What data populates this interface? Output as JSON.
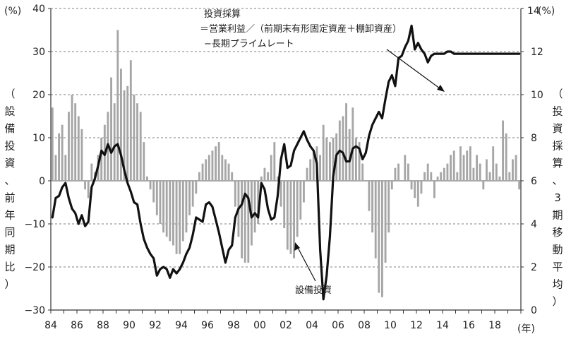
{
  "chart_data": {
    "type": "bar+line",
    "title": "",
    "left_axis": {
      "unit": "(%)",
      "label": "（設備投資、前年同期比）",
      "range": [
        -30,
        40
      ],
      "ticks": [
        "−30",
        "−20",
        "−10",
        "0",
        "10",
        "20",
        "30",
        "40"
      ]
    },
    "right_axis": {
      "unit": "(%)",
      "label": "（投資採算、3期移動平均）",
      "range": [
        0,
        14
      ],
      "ticks": [
        "0",
        "2",
        "4",
        "6",
        "8",
        "10",
        "12",
        "14"
      ]
    },
    "x_axis": {
      "unit": "(年)",
      "range": [
        1984,
        2020
      ],
      "tick_labels": [
        "84",
        "86",
        "88",
        "90",
        "92",
        "94",
        "96",
        "98",
        "00",
        "02",
        "04",
        "06",
        "08",
        "10",
        "12",
        "14",
        "16",
        "18"
      ]
    },
    "grid": "horizontal dashed",
    "annotations": {
      "line_title": "投資採算",
      "line_formula_1": "＝営業利益／（前期末有形固定資産＋棚卸資産）",
      "line_formula_2": "−長期プライムレート",
      "bar_label": "設備投資"
    },
    "series": [
      {
        "name": "設備投資",
        "type": "bar",
        "axis": "left",
        "color": "#a6a6a6",
        "x": [
          1984.0,
          1984.25,
          1984.5,
          1984.75,
          1985.0,
          1985.25,
          1985.5,
          1985.75,
          1986.0,
          1986.25,
          1986.5,
          1986.75,
          1987.0,
          1987.25,
          1987.5,
          1987.75,
          1988.0,
          1988.25,
          1988.5,
          1988.75,
          1989.0,
          1989.25,
          1989.5,
          1989.75,
          1990.0,
          1990.25,
          1990.5,
          1990.75,
          1991.0,
          1991.25,
          1991.5,
          1991.75,
          1992.0,
          1992.25,
          1992.5,
          1992.75,
          1993.0,
          1993.25,
          1993.5,
          1993.75,
          1994.0,
          1994.25,
          1994.5,
          1994.75,
          1995.0,
          1995.25,
          1995.5,
          1995.75,
          1996.0,
          1996.25,
          1996.5,
          1996.75,
          1997.0,
          1997.25,
          1997.5,
          1997.75,
          1998.0,
          1998.25,
          1998.5,
          1998.75,
          1999.0,
          1999.25,
          1999.5,
          1999.75,
          2000.0,
          2000.25,
          2000.5,
          2000.75,
          2001.0,
          2001.25,
          2001.5,
          2001.75,
          2002.0,
          2002.25,
          2002.5,
          2002.75,
          2003.0,
          2003.25,
          2003.5,
          2003.75,
          2004.0,
          2004.25,
          2004.5,
          2004.75,
          2005.0,
          2005.25,
          2005.5,
          2005.75,
          2006.0,
          2006.25,
          2006.5,
          2006.75,
          2007.0,
          2007.25,
          2007.5,
          2007.75,
          2008.0,
          2008.25,
          2008.5,
          2008.75,
          2009.0,
          2009.25,
          2009.5,
          2009.75,
          2010.0,
          2010.25,
          2010.5,
          2010.75,
          2011.0,
          2011.25,
          2011.5,
          2011.75,
          2012.0,
          2012.25,
          2012.5,
          2012.75,
          2013.0,
          2013.25,
          2013.5,
          2013.75,
          2014.0,
          2014.25,
          2014.5,
          2014.75,
          2015.0,
          2015.25,
          2015.5,
          2015.75,
          2016.0,
          2016.25,
          2016.5,
          2016.75,
          2017.0,
          2017.25,
          2017.5,
          2017.75,
          2018.0,
          2018.25,
          2018.5,
          2018.75,
          2019.0,
          2019.25,
          2019.5,
          2019.75
        ],
        "values": [
          17,
          6,
          11,
          13,
          6,
          16,
          20,
          18,
          15,
          12,
          -2,
          -4,
          4,
          2,
          6,
          10,
          13,
          16,
          24,
          18,
          35,
          26,
          21,
          22,
          28,
          20,
          18,
          16,
          9,
          1,
          -2,
          -5,
          -8,
          -10,
          -12,
          -13,
          -14,
          -15,
          -17,
          -17,
          -14,
          -12,
          -8,
          -6,
          -3,
          2,
          4,
          5,
          6,
          7,
          8,
          9,
          6,
          5,
          4,
          2,
          -6,
          -13,
          -18,
          -19,
          -19,
          -15,
          -12,
          -10,
          1,
          3,
          2,
          6,
          9,
          1,
          -6,
          -11,
          -16,
          -17,
          -18,
          -13,
          -9,
          -5,
          3,
          5,
          7,
          8,
          6,
          13,
          10,
          9,
          10,
          11,
          14,
          15,
          18,
          12,
          17,
          10,
          9,
          4,
          0,
          -7,
          -12,
          -18,
          -26,
          -27,
          -19,
          -12,
          -2,
          3,
          4,
          0,
          6,
          4,
          -2,
          -4,
          -6,
          -3,
          2,
          4,
          2,
          -4,
          1,
          2,
          3,
          4,
          6,
          7,
          2,
          8,
          6,
          7,
          8,
          3,
          6,
          4,
          -2,
          5,
          2,
          8,
          4,
          1,
          14,
          11,
          2,
          5,
          6,
          -2
        ]
      },
      {
        "name": "投資採算",
        "type": "line",
        "axis": "right",
        "color": "#111111",
        "x": [
          1984.0,
          1984.25,
          1984.5,
          1984.75,
          1985.0,
          1985.25,
          1985.5,
          1985.75,
          1986.0,
          1986.25,
          1986.5,
          1986.75,
          1987.0,
          1987.25,
          1987.5,
          1987.75,
          1988.0,
          1988.25,
          1988.5,
          1988.75,
          1989.0,
          1989.25,
          1989.5,
          1989.75,
          1990.0,
          1990.25,
          1990.5,
          1990.75,
          1991.0,
          1991.25,
          1991.5,
          1991.75,
          1992.0,
          1992.25,
          1992.5,
          1992.75,
          1993.0,
          1993.25,
          1993.5,
          1993.75,
          1994.0,
          1994.25,
          1994.5,
          1994.75,
          1995.0,
          1995.25,
          1995.5,
          1995.75,
          1996.0,
          1996.25,
          1996.5,
          1996.75,
          1997.0,
          1997.25,
          1997.5,
          1997.75,
          1998.0,
          1998.25,
          1998.5,
          1998.75,
          1999.0,
          1999.25,
          1999.5,
          1999.75,
          2000.0,
          2000.25,
          2000.5,
          2000.75,
          2001.0,
          2001.25,
          2001.5,
          2001.75,
          2002.0,
          2002.25,
          2002.5,
          2002.75,
          2003.0,
          2003.25,
          2003.5,
          2003.75,
          2004.0,
          2004.25,
          2004.5,
          2004.75,
          2005.0,
          2005.25,
          2005.5,
          2005.75,
          2006.0,
          2006.25,
          2006.5,
          2006.75,
          2007.0,
          2007.25,
          2007.5,
          2007.75,
          2008.0,
          2008.25,
          2008.5,
          2008.75,
          2009.0,
          2009.25,
          2009.5,
          2009.75,
          2010.0,
          2010.25,
          2010.5,
          2010.75,
          2011.0,
          2011.25,
          2011.5,
          2011.75,
          2012.0,
          2012.25,
          2012.5,
          2012.75,
          2013.0,
          2013.25,
          2013.5,
          2013.75,
          2014.0,
          2014.25,
          2014.5,
          2014.75,
          2015.0,
          2015.25,
          2015.5,
          2015.75,
          2016.0,
          2016.25,
          2016.5,
          2016.75,
          2017.0,
          2017.25,
          2017.5,
          2017.75,
          2018.0,
          2018.25,
          2018.5,
          2018.75,
          2019.0,
          2019.25,
          2019.5,
          2019.75
        ],
        "values": [
          4.3,
          5.2,
          5.3,
          5.7,
          5.9,
          5.2,
          4.7,
          4.5,
          4.0,
          4.4,
          3.9,
          4.1,
          5.7,
          6.1,
          6.7,
          7.4,
          7.2,
          7.7,
          7.3,
          7.6,
          7.7,
          7.2,
          6.5,
          5.9,
          5.5,
          5.0,
          4.9,
          4.0,
          3.3,
          2.9,
          2.6,
          2.4,
          1.6,
          1.9,
          2.0,
          1.9,
          1.5,
          1.9,
          1.7,
          1.9,
          2.2,
          2.6,
          2.9,
          3.5,
          4.3,
          4.2,
          4.1,
          4.9,
          5.0,
          4.8,
          4.2,
          3.6,
          2.9,
          2.2,
          2.8,
          3.0,
          4.3,
          4.7,
          4.9,
          5.4,
          5.2,
          4.3,
          4.5,
          4.3,
          5.9,
          5.6,
          4.7,
          4.2,
          4.3,
          5.3,
          7.0,
          7.7,
          6.6,
          6.7,
          7.4,
          7.7,
          8.0,
          8.3,
          7.9,
          7.6,
          7.4,
          6.8,
          2.8,
          0.5,
          1.6,
          3.4,
          6.2,
          7.2,
          7.4,
          7.3,
          6.9,
          6.9,
          7.5,
          7.6,
          7.5,
          7.0,
          7.3,
          8.1,
          8.6,
          8.9,
          9.2,
          8.9,
          9.8,
          10.6,
          10.9,
          10.4,
          11.7,
          11.8,
          12.2,
          12.5,
          13.2,
          12.1,
          12.4,
          12.1,
          11.9,
          11.5,
          11.8,
          11.9,
          11.9,
          11.9,
          11.9,
          12.0,
          12.0,
          11.9,
          11.9,
          11.9,
          11.9,
          11.9,
          11.9,
          11.9,
          11.9,
          11.9,
          11.9,
          11.9,
          11.9,
          11.9,
          11.9,
          11.9,
          11.9,
          11.9,
          11.9,
          11.9,
          11.9,
          11.9
        ]
      }
    ]
  }
}
